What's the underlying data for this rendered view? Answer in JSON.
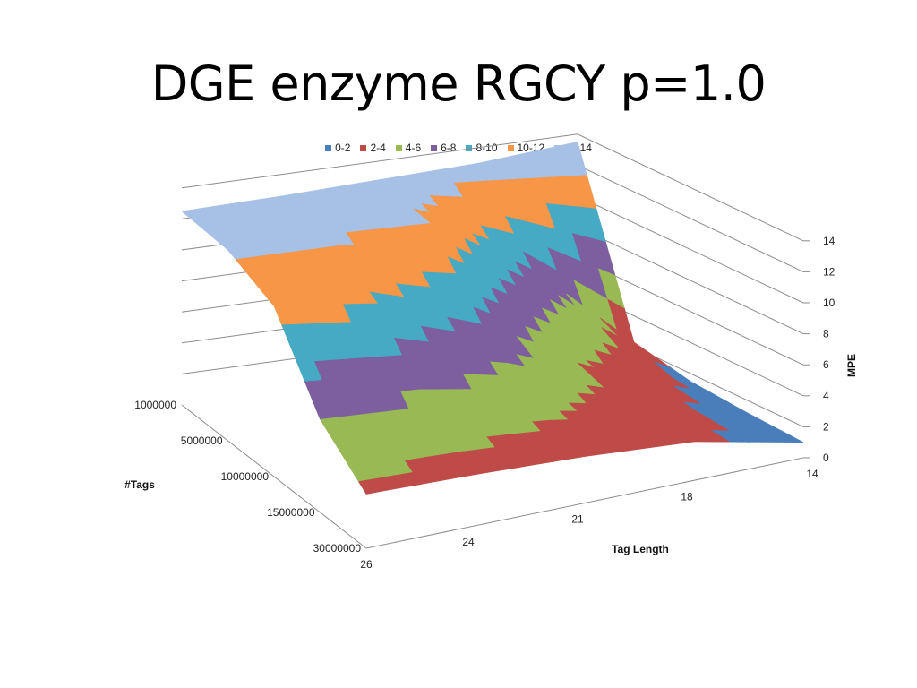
{
  "slide": {
    "title": "DGE enzyme RGCY p=1.0"
  },
  "chart_data": {
    "type": "surface",
    "title": "",
    "legend_placement": "top",
    "legend": [
      {
        "label": "0-2",
        "color": "#4a7ebb"
      },
      {
        "label": "2-4",
        "color": "#be4b48"
      },
      {
        "label": "4-6",
        "color": "#98b954"
      },
      {
        "label": "6-8",
        "color": "#7d5fa0"
      },
      {
        "label": "8-10",
        "color": "#46aac4"
      },
      {
        "label": "10-12",
        "color": "#f79646"
      },
      {
        "label": "12-14",
        "color": "#a7c0e6"
      }
    ],
    "x_axis": {
      "title": "Tag Length",
      "ticks": [
        "14",
        "18",
        "21",
        "24",
        "26"
      ]
    },
    "y_axis": {
      "title": "#Tags",
      "ticks": [
        "1000000",
        "5000000",
        "10000000",
        "15000000",
        "30000000"
      ]
    },
    "z_axis": {
      "title": "MPE",
      "ticks": [
        "0",
        "2",
        "4",
        "6",
        "8",
        "10",
        "12",
        "14"
      ],
      "range": [
        0,
        14
      ]
    },
    "z_values_estimated": {
      "note_rows": "rows = #Tags ticks, columns = Tag Length ticks",
      "values": [
        [
          13.5,
          13.0,
          12.8,
          12.6,
          12.5
        ],
        [
          2.3,
          8.0,
          12.0,
          12.3,
          12.3
        ],
        [
          1.5,
          4.0,
          7.5,
          10.0,
          11.0
        ],
        [
          1.2,
          3.0,
          4.5,
          5.5,
          6.0
        ],
        [
          1.0,
          2.5,
          3.0,
          3.3,
          3.5
        ]
      ]
    },
    "grid": true
  }
}
